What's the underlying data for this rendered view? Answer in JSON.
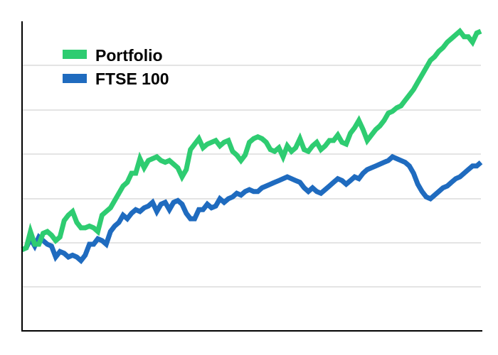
{
  "chart_data": {
    "type": "line",
    "title": "",
    "xlabel": "",
    "ylabel": "",
    "x": [
      0,
      1,
      2,
      3,
      4,
      5,
      6,
      7,
      8,
      9,
      10,
      11,
      12,
      13,
      14,
      15,
      16,
      17,
      18,
      19,
      20,
      21,
      22,
      23,
      24,
      25,
      26,
      27,
      28,
      29,
      30,
      31,
      32,
      33,
      34,
      35,
      36,
      37,
      38,
      39,
      40,
      41,
      42,
      43,
      44,
      45,
      46,
      47,
      48,
      49,
      50,
      51,
      52,
      53,
      54,
      55,
      56,
      57,
      58,
      59,
      60,
      61,
      62,
      63,
      64,
      65,
      66,
      67,
      68,
      69,
      70,
      71,
      72,
      73,
      74,
      75,
      76,
      77,
      78,
      79,
      80,
      81,
      82,
      83,
      84,
      85,
      86,
      87,
      88,
      89,
      90,
      91,
      92,
      93,
      94,
      95,
      96,
      97,
      98,
      99,
      100,
      101,
      102,
      103,
      104,
      105,
      106,
      107,
      108,
      109
    ],
    "xlim": [
      0,
      109
    ],
    "ylim": [
      0,
      7
    ],
    "grid": true,
    "legend_position": "top-left",
    "series": [
      {
        "name": "Portfolio",
        "color": "#2ecc71",
        "values": [
          1.0,
          1.05,
          1.5,
          1.15,
          1.15,
          1.45,
          1.5,
          1.4,
          1.25,
          1.35,
          1.8,
          1.95,
          2.05,
          1.75,
          1.6,
          1.6,
          1.65,
          1.6,
          1.5,
          1.95,
          2.05,
          2.15,
          2.35,
          2.55,
          2.75,
          2.85,
          3.1,
          3.1,
          3.5,
          3.25,
          3.45,
          3.5,
          3.55,
          3.45,
          3.4,
          3.45,
          3.35,
          3.25,
          3.0,
          3.2,
          3.75,
          3.9,
          4.05,
          3.8,
          3.9,
          3.95,
          4.0,
          3.85,
          3.95,
          4.0,
          3.7,
          3.6,
          3.45,
          3.6,
          3.95,
          4.05,
          4.1,
          4.05,
          3.95,
          3.75,
          3.7,
          3.8,
          3.55,
          3.85,
          3.7,
          3.8,
          4.05,
          3.75,
          3.7,
          3.85,
          3.95,
          3.75,
          3.85,
          4.0,
          4.0,
          4.15,
          3.95,
          3.9,
          4.2,
          4.35,
          4.55,
          4.3,
          4.0,
          4.15,
          4.3,
          4.4,
          4.55,
          4.75,
          4.8,
          4.9,
          4.95,
          5.1,
          5.25,
          5.4,
          5.6,
          5.8,
          6.0,
          6.2,
          6.3,
          6.45,
          6.55,
          6.7,
          6.8,
          6.9,
          7.0,
          6.85,
          6.85,
          6.7,
          6.95,
          7.0
        ]
      },
      {
        "name": "FTSE 100",
        "color": "#1f6bbf",
        "values": [
          1.0,
          1.05,
          1.3,
          1.1,
          1.35,
          1.25,
          1.15,
          1.1,
          0.8,
          0.95,
          0.9,
          0.8,
          0.85,
          0.8,
          0.7,
          0.85,
          1.15,
          1.15,
          1.3,
          1.25,
          1.15,
          1.5,
          1.65,
          1.75,
          1.95,
          1.85,
          2.0,
          2.1,
          2.05,
          2.15,
          2.2,
          2.3,
          2.05,
          2.25,
          2.3,
          2.1,
          2.3,
          2.35,
          2.25,
          2.0,
          1.85,
          1.85,
          2.1,
          2.1,
          2.25,
          2.15,
          2.2,
          2.4,
          2.3,
          2.4,
          2.45,
          2.55,
          2.5,
          2.6,
          2.65,
          2.6,
          2.6,
          2.7,
          2.75,
          2.8,
          2.85,
          2.9,
          2.95,
          3.0,
          2.95,
          2.9,
          2.85,
          2.7,
          2.6,
          2.7,
          2.6,
          2.55,
          2.65,
          2.75,
          2.85,
          2.95,
          2.9,
          2.8,
          2.9,
          3.0,
          2.95,
          3.1,
          3.2,
          3.25,
          3.3,
          3.35,
          3.4,
          3.45,
          3.55,
          3.5,
          3.45,
          3.4,
          3.3,
          3.1,
          2.8,
          2.6,
          2.45,
          2.4,
          2.5,
          2.6,
          2.7,
          2.75,
          2.85,
          2.95,
          3.0,
          3.1,
          3.2,
          3.3,
          3.3,
          3.4
        ]
      }
    ]
  }
}
